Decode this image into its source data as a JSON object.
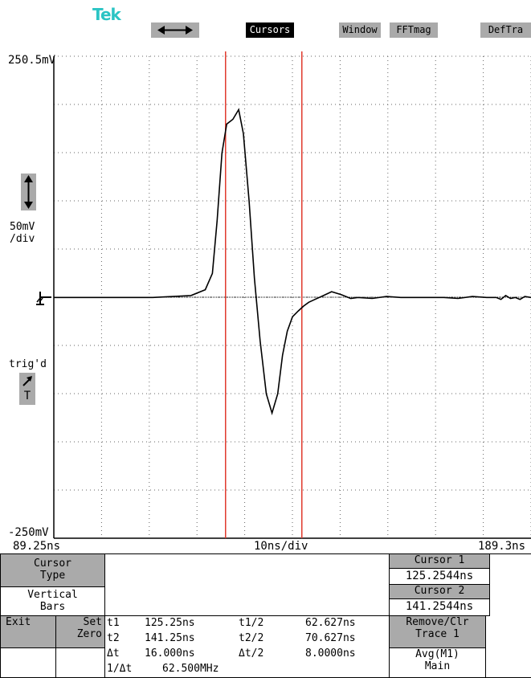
{
  "brand": "Tek",
  "menu": {
    "horizontal_icon": "left-right-arrow-icon",
    "cursors": "Cursors",
    "window": "Window",
    "fftmag": "FFTmag",
    "deftra": "DefTra"
  },
  "axes": {
    "y_top": "250.5mV",
    "y_bottom": "-250mV",
    "vscale_line1": "50mV",
    "vscale_line2": "/div",
    "x_left": "89.25ns",
    "x_right": "189.3ns",
    "x_div": "10ns/div"
  },
  "markers": {
    "trig_label": "trig'd",
    "trig_letter": "T"
  },
  "colors": {
    "cursor": "#e03a2e",
    "trace": "#000000",
    "grid": "#666666",
    "menu_gray": "#aaaaaa",
    "brand": "#2bc4c4"
  },
  "chart_data": {
    "type": "line",
    "x_unit": "ns",
    "y_unit": "mV",
    "xlim": [
      89.25,
      189.3
    ],
    "ylim": [
      -250,
      250.5
    ],
    "grid": true,
    "cursors_x": [
      125.2544,
      141.2544
    ],
    "series": [
      {
        "x": [
          89.25,
          100,
          110,
          118,
          121,
          122.5,
          123.5,
          124.5,
          125.5,
          126.8,
          128,
          129,
          130.2,
          131.3,
          132.5,
          133.8,
          135,
          136.2,
          137.2,
          138.2,
          139.3,
          140.5,
          141.6,
          142.7,
          144,
          145.8,
          147.5,
          149.5,
          151.5,
          153,
          156,
          159,
          162,
          165,
          168,
          171,
          174,
          177,
          180,
          182,
          183,
          184,
          185,
          186,
          187,
          188,
          189.3
        ],
        "y": [
          0,
          0,
          0,
          2,
          8,
          25,
          80,
          150,
          180,
          185,
          195,
          170,
          100,
          20,
          -45,
          -100,
          -120,
          -100,
          -60,
          -35,
          -20,
          -14,
          -9,
          -5,
          -2,
          2,
          6,
          3,
          -1,
          0,
          -1,
          1,
          0,
          0,
          0,
          0,
          -1,
          1,
          0,
          0,
          -2,
          2,
          -1,
          0,
          -2,
          1,
          0
        ]
      }
    ]
  },
  "cursor_panel": {
    "type_label_1": "Cursor",
    "type_label_2": "Type",
    "mode_label_1": "Vertical",
    "mode_label_2": "Bars",
    "cursor1_label": "Cursor 1",
    "cursor1_value": "125.2544ns",
    "cursor2_label": "Cursor 2",
    "cursor2_value": "141.2544ns"
  },
  "bottom": {
    "exit": "Exit",
    "set_1": "Set",
    "set_2": "Zero",
    "t1": "t1",
    "t1_val": "125.25ns",
    "t1h": "t1/2",
    "t1h_val": "62.627ns",
    "t2": "t2",
    "t2_val": "141.25ns",
    "t2h": "t2/2",
    "t2h_val": "70.627ns",
    "dt": "Δt",
    "dt_val": "16.000ns",
    "dth": "Δt/2",
    "dth_val": "8.0000ns",
    "inv": "1/Δt",
    "inv_val": "62.500MHz",
    "remove_1": "Remove/Clr",
    "remove_2": "Trace 1",
    "avg_1": "Avg(M1)",
    "avg_2": "Main"
  }
}
